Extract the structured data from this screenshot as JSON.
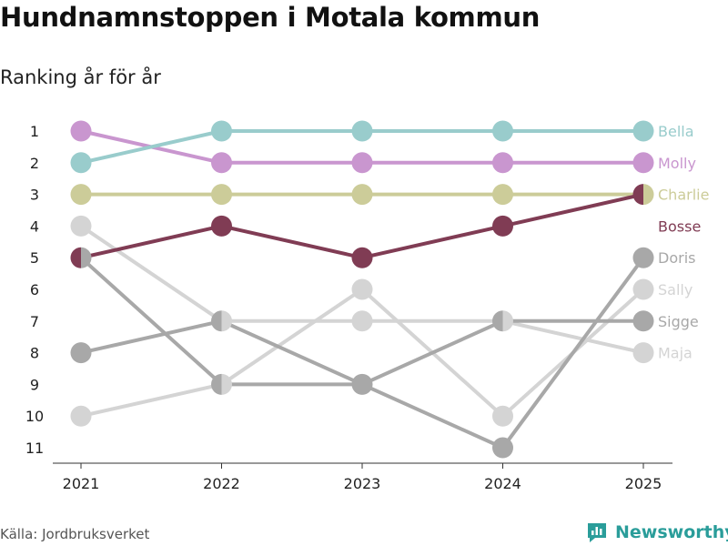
{
  "chart_data": {
    "type": "line",
    "title": "Hundnamnstoppen i Motala kommun",
    "subtitle": "Ranking år för år",
    "xlabel": "",
    "ylabel": "",
    "categories": [
      "2021",
      "2022",
      "2023",
      "2024",
      "2025"
    ],
    "ytick_labels": [
      "1",
      "2",
      "3",
      "4",
      "5",
      "6",
      "7",
      "8",
      "9",
      "10",
      "11"
    ],
    "ylim": [
      1,
      11
    ],
    "y_inverted": true,
    "series": [
      {
        "name": "Sally",
        "color": "#d4d4d4",
        "values": [
          10,
          9,
          6,
          10,
          6
        ]
      },
      {
        "name": "Maja",
        "color": "#d4d4d4",
        "values": [
          4,
          7,
          7,
          7,
          8
        ]
      },
      {
        "name": "Sigge",
        "color": "#a8a8a8",
        "values": [
          8,
          7,
          9,
          7,
          7
        ]
      },
      {
        "name": "Doris",
        "color": "#a8a8a8",
        "values": [
          5,
          9,
          9,
          11,
          5
        ]
      },
      {
        "name": "Charlie",
        "color": "#cccc99",
        "values": [
          3,
          3,
          3,
          3,
          3
        ]
      },
      {
        "name": "Bosse",
        "color": "#803c54",
        "values": [
          5,
          4,
          5,
          4,
          3
        ]
      },
      {
        "name": "Molly",
        "color": "#c996cf",
        "values": [
          1,
          2,
          2,
          2,
          2
        ]
      },
      {
        "name": "Bella",
        "color": "#99cccc",
        "values": [
          2,
          1,
          1,
          1,
          1
        ]
      }
    ],
    "labels_order": [
      "Bella",
      "Molly",
      "Charlie",
      "Bosse",
      "Doris",
      "Sally",
      "Sigge",
      "Maja"
    ],
    "legend": "right"
  },
  "footer": {
    "source": "Källa: Jordbruksverket",
    "brand": "Newsworthy",
    "brand_color": "#2a9d9a"
  }
}
